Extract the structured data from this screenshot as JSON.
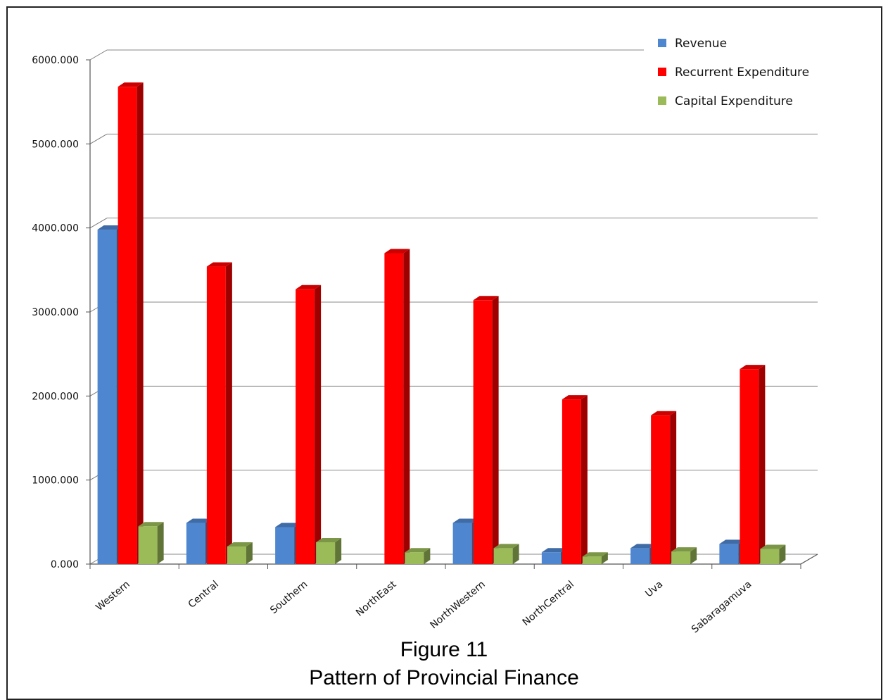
{
  "figure": {
    "label": "Figure 11",
    "title": "Pattern of Provincial Finance"
  },
  "chart_data": {
    "type": "bar",
    "style": "3d-clustered-column",
    "categories": [
      "Western",
      "Central",
      "Southern",
      "NorthEast",
      "NorthWestern",
      "NorthCentral",
      "Uva",
      "Sabaragamuva"
    ],
    "series": [
      {
        "name": "Revenue",
        "color": "#4f86d0",
        "values": [
          3980,
          490,
          440,
          0,
          490,
          140,
          190,
          240
        ]
      },
      {
        "name": "Recurrent Expenditure",
        "color": "#ff0000",
        "values": [
          5680,
          3540,
          3270,
          3700,
          3140,
          1960,
          1770,
          2320
        ]
      },
      {
        "name": "Capital Expenditure",
        "color": "#9bbb59",
        "values": [
          450,
          210,
          260,
          140,
          190,
          90,
          150,
          180
        ]
      }
    ],
    "yticks": [
      "0.000",
      "1000.000",
      "2000.000",
      "3000.000",
      "4000.000",
      "5000.000",
      "6000.000"
    ],
    "ylim": [
      0,
      6000
    ],
    "grid": true,
    "legend_position": "top-right"
  }
}
